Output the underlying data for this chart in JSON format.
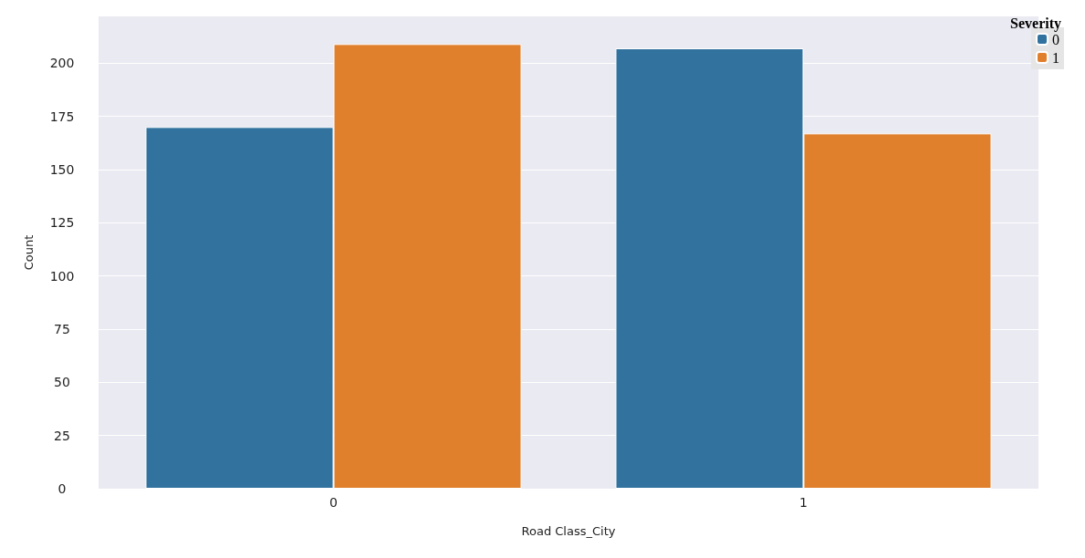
{
  "chart_data": {
    "type": "bar",
    "xlabel": "Road Class_City",
    "ylabel": "Count",
    "legend_title": "Severity",
    "categories": [
      "0",
      "1"
    ],
    "series": [
      {
        "name": "0",
        "color": "#31729f",
        "values": [
          170,
          207
        ]
      },
      {
        "name": "1",
        "color": "#e07f2c",
        "values": [
          209,
          167
        ]
      }
    ],
    "ylim": [
      0,
      222
    ],
    "yticks": [
      0,
      25,
      50,
      75,
      100,
      125,
      150,
      175,
      200
    ],
    "grid": "y",
    "legend": "top right"
  }
}
